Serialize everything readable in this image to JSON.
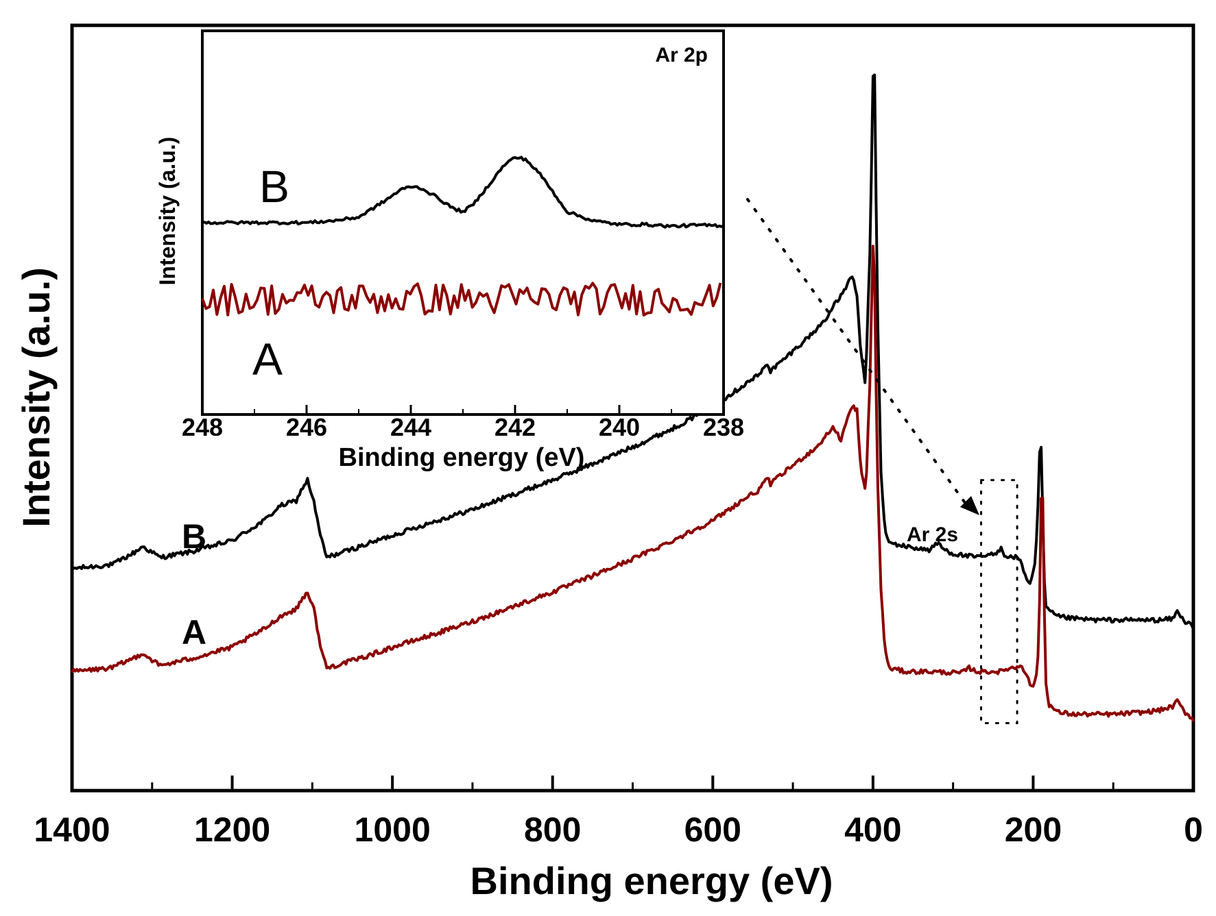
{
  "chart_data": [
    {
      "id": "main",
      "type": "line",
      "title": "",
      "xlabel": "Binding energy (eV)",
      "ylabel": "Intensity (a.u.)",
      "xlim": [
        1400,
        0
      ],
      "ylim": [
        0,
        100
      ],
      "x_ticks": [
        1400,
        1200,
        1000,
        800,
        600,
        400,
        200,
        0
      ],
      "x_tick_labels": [
        "1400",
        "1200",
        "1000",
        "800",
        "600",
        "400",
        "200",
        "0"
      ],
      "y_ticks_shown": false,
      "annotation": {
        "text": "Ar 2s",
        "x_range": [
          265,
          220
        ],
        "arrow_from_inset": true
      },
      "series": [
        {
          "name": "B",
          "color": "#000000",
          "x": [
            1400,
            1350,
            1320,
            1312,
            1290,
            1250,
            1200,
            1160,
            1140,
            1120,
            1112,
            1106,
            1098,
            1090,
            1082,
            1040,
            1000,
            950,
            900,
            850,
            800,
            750,
            700,
            650,
            600,
            560,
            540,
            533,
            528,
            500,
            470,
            455,
            450,
            440,
            430,
            425,
            420,
            415,
            410,
            408,
            403,
            401,
            399,
            397,
            395,
            390,
            385,
            380,
            360,
            330,
            318,
            313,
            300,
            270,
            245,
            240,
            237,
            230,
            220,
            214,
            208,
            203,
            197,
            193,
            191,
            189,
            187,
            185,
            180,
            170,
            150,
            120,
            80,
            40,
            25,
            20,
            17,
            12,
            6,
            0
          ],
          "y": [
            27.0,
            27.5,
            29.3,
            30.0,
            28.5,
            29.3,
            30.8,
            33.5,
            35.5,
            36.2,
            38.0,
            39.0,
            36.0,
            31.5,
            28.5,
            30.0,
            31.5,
            33.3,
            35.0,
            37.0,
            39.0,
            41.2,
            43.5,
            46.0,
            49.0,
            52.0,
            53.5,
            55.0,
            53.8,
            56.5,
            59.5,
            61.5,
            62.5,
            64.0,
            66.0,
            66.5,
            64.0,
            56.0,
            52.5,
            56.0,
            73.0,
            88.0,
            100.0,
            88.0,
            65.0,
            40.0,
            32.0,
            30.5,
            30.0,
            29.5,
            30.5,
            29.7,
            29.0,
            28.5,
            29.0,
            30.0,
            29.0,
            28.5,
            28.6,
            27.5,
            25.5,
            25.0,
            28.0,
            38.0,
            47.0,
            40.0,
            28.0,
            22.0,
            21.2,
            20.5,
            20.2,
            20.0,
            20.0,
            20.0,
            20.2,
            21.2,
            20.8,
            19.8,
            19.8,
            19.0
          ]
        },
        {
          "name": "A",
          "color": "#8B0000",
          "x": [
            1400,
            1350,
            1320,
            1312,
            1290,
            1250,
            1200,
            1160,
            1140,
            1120,
            1112,
            1106,
            1098,
            1090,
            1082,
            1040,
            1000,
            950,
            900,
            850,
            800,
            750,
            700,
            650,
            600,
            560,
            540,
            533,
            528,
            500,
            470,
            455,
            450,
            440,
            430,
            425,
            420,
            415,
            410,
            408,
            403,
            401,
            399,
            397,
            395,
            390,
            385,
            380,
            360,
            330,
            290,
            280,
            270,
            240,
            230,
            222,
            215,
            208,
            203,
            197,
            193,
            191,
            189,
            187,
            185,
            180,
            170,
            150,
            100,
            60,
            40,
            25,
            20,
            17,
            12,
            6,
            0
          ],
          "y": [
            13.0,
            13.5,
            15.0,
            15.5,
            13.8,
            14.8,
            16.3,
            18.8,
            20.5,
            21.5,
            23.0,
            23.8,
            21.5,
            16.5,
            13.5,
            14.8,
            16.3,
            18.0,
            19.8,
            21.8,
            23.8,
            26.0,
            28.3,
            30.8,
            33.5,
            36.5,
            37.8,
            39.5,
            38.5,
            41.0,
            43.5,
            45.5,
            46.2,
            44.5,
            48.0,
            49.0,
            48.5,
            40.0,
            38.0,
            40.0,
            55.0,
            68.0,
            73.0,
            60.0,
            42.0,
            24.0,
            16.0,
            13.5,
            13.0,
            13.0,
            12.8,
            13.5,
            13.0,
            13.0,
            13.5,
            13.5,
            14.0,
            12.5,
            11.0,
            11.5,
            16.0,
            30.0,
            43.0,
            30.0,
            12.0,
            8.5,
            7.5,
            7.2,
            7.2,
            7.5,
            7.8,
            8.3,
            9.0,
            8.6,
            7.6,
            7.1,
            6.5
          ]
        }
      ],
      "labels": [
        {
          "text": "B",
          "series": "B"
        },
        {
          "text": "A",
          "series": "A"
        }
      ]
    },
    {
      "id": "inset",
      "type": "line",
      "title": "Ar 2p",
      "xlabel": "Binding energy (eV)",
      "ylabel": "Intensity (a.u.)",
      "xlim": [
        248,
        238
      ],
      "ylim": [
        0,
        100
      ],
      "x_ticks": [
        248,
        246,
        244,
        242,
        240,
        238
      ],
      "x_tick_labels": [
        "248",
        "246",
        "244",
        "242",
        "240",
        "238"
      ],
      "y_ticks_shown": false,
      "series": [
        {
          "name": "B",
          "color": "#000000",
          "x": [
            248,
            247.5,
            247,
            246.5,
            246,
            245.5,
            245,
            244.5,
            244.2,
            244,
            243.8,
            243.5,
            243.2,
            243,
            242.8,
            242.5,
            242.2,
            242,
            241.8,
            241.5,
            241.2,
            241,
            240.5,
            240,
            239.5,
            239,
            238.5,
            238
          ],
          "y": [
            50,
            50,
            50,
            50,
            50,
            50.5,
            51.5,
            56,
            59,
            60,
            59.5,
            57,
            54,
            53,
            55,
            60.5,
            66,
            68,
            67.5,
            63,
            57,
            53,
            50.5,
            49.5,
            49.5,
            49,
            49.3,
            49.2
          ],
          "noise": 0.4
        },
        {
          "name": "A",
          "color": "#8B0000",
          "x": [
            248,
            238
          ],
          "y": [
            29,
            29
          ],
          "noise": 4.5
        }
      ],
      "labels": [
        {
          "text": "B",
          "series": "B"
        },
        {
          "text": "A",
          "series": "A"
        }
      ]
    }
  ]
}
